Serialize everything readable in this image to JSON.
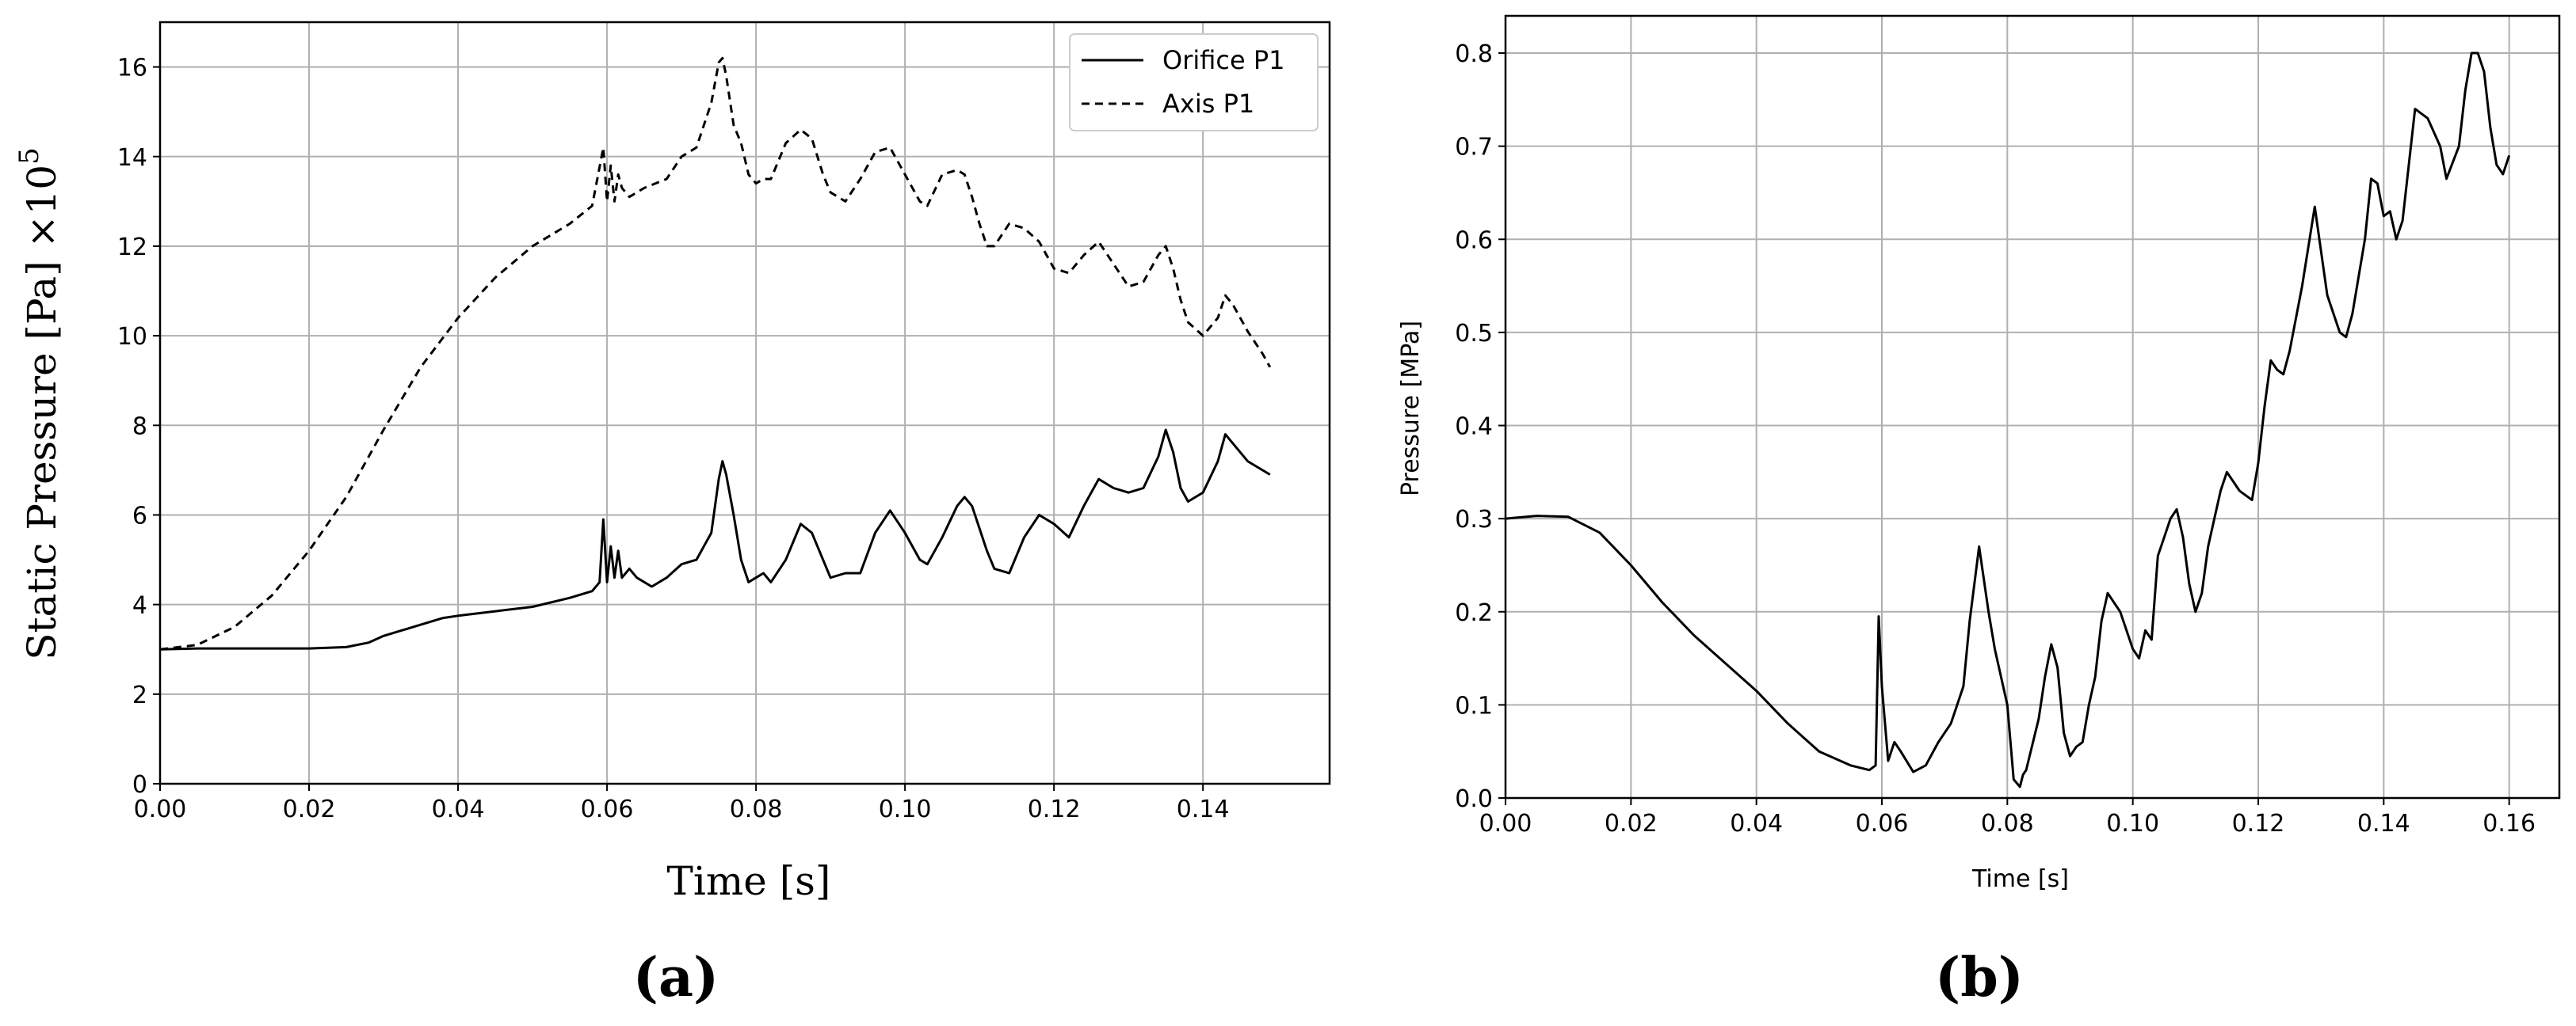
{
  "chart_data": [
    {
      "id": "a",
      "type": "line",
      "caption": "(a)",
      "xlabel": "Time [s]",
      "ylabel": "Static Pressure [Pa] ×10",
      "ylabel_exp": "5",
      "xlim": [
        0,
        0.157
      ],
      "ylim": [
        0,
        17
      ],
      "xticks": [
        "0.00",
        "0.02",
        "0.04",
        "0.06",
        "0.08",
        "0.10",
        "0.12",
        "0.14"
      ],
      "yticks": [
        "0",
        "2",
        "4",
        "6",
        "8",
        "10",
        "12",
        "14",
        "16"
      ],
      "grid": true,
      "legend": {
        "placement": "top-right",
        "entries": [
          "Orifice P1",
          "Axis P1"
        ]
      },
      "series": [
        {
          "name": "Orifice P1",
          "style": "solid",
          "x": [
            0,
            0.005,
            0.01,
            0.015,
            0.02,
            0.025,
            0.028,
            0.03,
            0.032,
            0.035,
            0.038,
            0.04,
            0.045,
            0.05,
            0.055,
            0.058,
            0.059,
            0.0595,
            0.06,
            0.0605,
            0.061,
            0.0615,
            0.062,
            0.063,
            0.064,
            0.066,
            0.068,
            0.07,
            0.072,
            0.074,
            0.075,
            0.0755,
            0.076,
            0.077,
            0.078,
            0.079,
            0.08,
            0.081,
            0.082,
            0.084,
            0.086,
            0.0875,
            0.089,
            0.09,
            0.092,
            0.094,
            0.096,
            0.098,
            0.1,
            0.102,
            0.103,
            0.105,
            0.107,
            0.108,
            0.109,
            0.11,
            0.111,
            0.112,
            0.114,
            0.116,
            0.118,
            0.12,
            0.122,
            0.124,
            0.126,
            0.128,
            0.13,
            0.132,
            0.134,
            0.135,
            0.136,
            0.137,
            0.138,
            0.14,
            0.142,
            0.143,
            0.144,
            0.146,
            0.148,
            0.149
          ],
          "values": [
            3.0,
            3.02,
            3.02,
            3.02,
            3.02,
            3.05,
            3.15,
            3.3,
            3.4,
            3.55,
            3.7,
            3.75,
            3.85,
            3.95,
            4.15,
            4.3,
            4.5,
            5.9,
            4.5,
            5.3,
            4.6,
            5.2,
            4.6,
            4.8,
            4.6,
            4.4,
            4.6,
            4.9,
            5.0,
            5.6,
            6.8,
            7.2,
            6.9,
            6.0,
            5.0,
            4.5,
            4.6,
            4.7,
            4.5,
            5.0,
            5.8,
            5.6,
            5.0,
            4.6,
            4.7,
            4.7,
            5.6,
            6.1,
            5.6,
            5.0,
            4.9,
            5.5,
            6.2,
            6.4,
            6.2,
            5.7,
            5.2,
            4.8,
            4.7,
            5.5,
            6.0,
            5.8,
            5.5,
            6.2,
            6.8,
            6.6,
            6.5,
            6.6,
            7.3,
            7.9,
            7.4,
            6.6,
            6.3,
            6.5,
            7.2,
            7.8,
            7.6,
            7.2,
            7.0,
            6.9
          ]
        },
        {
          "name": "Axis P1",
          "style": "dashed",
          "x": [
            0,
            0.005,
            0.01,
            0.015,
            0.02,
            0.025,
            0.03,
            0.035,
            0.04,
            0.045,
            0.05,
            0.055,
            0.058,
            0.0595,
            0.06,
            0.0605,
            0.061,
            0.0615,
            0.062,
            0.063,
            0.065,
            0.068,
            0.07,
            0.072,
            0.074,
            0.075,
            0.0755,
            0.076,
            0.077,
            0.078,
            0.079,
            0.08,
            0.081,
            0.082,
            0.084,
            0.086,
            0.0875,
            0.089,
            0.09,
            0.092,
            0.094,
            0.096,
            0.098,
            0.1,
            0.102,
            0.103,
            0.105,
            0.107,
            0.108,
            0.109,
            0.11,
            0.111,
            0.112,
            0.114,
            0.116,
            0.118,
            0.12,
            0.122,
            0.124,
            0.126,
            0.128,
            0.13,
            0.132,
            0.134,
            0.135,
            0.136,
            0.137,
            0.138,
            0.14,
            0.142,
            0.143,
            0.144,
            0.146,
            0.148,
            0.149
          ],
          "values": [
            3.0,
            3.1,
            3.5,
            4.2,
            5.2,
            6.4,
            7.9,
            9.3,
            10.4,
            11.3,
            12.0,
            12.5,
            12.9,
            14.2,
            13.0,
            13.8,
            13.0,
            13.6,
            13.3,
            13.1,
            13.3,
            13.5,
            14.0,
            14.2,
            15.2,
            16.1,
            16.2,
            15.8,
            14.7,
            14.3,
            13.6,
            13.4,
            13.5,
            13.5,
            14.3,
            14.6,
            14.4,
            13.6,
            13.2,
            13.0,
            13.5,
            14.1,
            14.2,
            13.6,
            13.0,
            12.9,
            13.6,
            13.7,
            13.6,
            13.1,
            12.5,
            12.0,
            12.0,
            12.5,
            12.4,
            12.1,
            11.5,
            11.4,
            11.8,
            12.1,
            11.6,
            11.1,
            11.2,
            11.8,
            12.0,
            11.5,
            10.8,
            10.3,
            10.0,
            10.4,
            10.9,
            10.7,
            10.1,
            9.6,
            9.3
          ]
        }
      ]
    },
    {
      "id": "b",
      "type": "line",
      "caption": "(b)",
      "xlabel": "Time [s]",
      "ylabel": "Pressure [MPa]",
      "xlim": [
        0,
        0.168
      ],
      "ylim": [
        0,
        0.84
      ],
      "xticks": [
        "0.00",
        "0.02",
        "0.04",
        "0.06",
        "0.08",
        "0.10",
        "0.12",
        "0.14",
        "0.16"
      ],
      "yticks": [
        "0.0",
        "0.1",
        "0.2",
        "0.3",
        "0.4",
        "0.5",
        "0.6",
        "0.7",
        "0.8"
      ],
      "grid": true,
      "series": [
        {
          "name": "Pressure",
          "style": "solid",
          "x": [
            0,
            0.005,
            0.01,
            0.015,
            0.02,
            0.025,
            0.03,
            0.035,
            0.04,
            0.045,
            0.05,
            0.055,
            0.058,
            0.059,
            0.0595,
            0.06,
            0.061,
            0.062,
            0.063,
            0.065,
            0.067,
            0.069,
            0.071,
            0.073,
            0.074,
            0.0755,
            0.077,
            0.078,
            0.079,
            0.08,
            0.081,
            0.082,
            0.0825,
            0.083,
            0.085,
            0.086,
            0.087,
            0.088,
            0.089,
            0.09,
            0.091,
            0.092,
            0.093,
            0.094,
            0.095,
            0.096,
            0.098,
            0.1,
            0.101,
            0.102,
            0.103,
            0.104,
            0.105,
            0.106,
            0.107,
            0.108,
            0.109,
            0.11,
            0.111,
            0.112,
            0.113,
            0.114,
            0.115,
            0.117,
            0.119,
            0.12,
            0.121,
            0.122,
            0.123,
            0.124,
            0.125,
            0.127,
            0.129,
            0.131,
            0.133,
            0.134,
            0.135,
            0.136,
            0.137,
            0.138,
            0.139,
            0.14,
            0.141,
            0.142,
            0.143,
            0.144,
            0.145,
            0.147,
            0.149,
            0.15,
            0.152,
            0.153,
            0.154,
            0.155,
            0.156,
            0.157,
            0.158,
            0.159,
            0.16
          ],
          "values": [
            0.3,
            0.303,
            0.302,
            0.285,
            0.25,
            0.21,
            0.175,
            0.145,
            0.115,
            0.08,
            0.05,
            0.035,
            0.03,
            0.035,
            0.195,
            0.12,
            0.04,
            0.06,
            0.05,
            0.028,
            0.035,
            0.06,
            0.08,
            0.12,
            0.19,
            0.27,
            0.2,
            0.16,
            0.13,
            0.1,
            0.02,
            0.012,
            0.025,
            0.03,
            0.085,
            0.13,
            0.165,
            0.14,
            0.07,
            0.045,
            0.055,
            0.06,
            0.1,
            0.13,
            0.19,
            0.22,
            0.2,
            0.16,
            0.15,
            0.18,
            0.17,
            0.26,
            0.28,
            0.3,
            0.31,
            0.28,
            0.23,
            0.2,
            0.22,
            0.27,
            0.3,
            0.33,
            0.35,
            0.33,
            0.32,
            0.36,
            0.42,
            0.47,
            0.46,
            0.455,
            0.48,
            0.55,
            0.635,
            0.54,
            0.5,
            0.495,
            0.52,
            0.56,
            0.6,
            0.665,
            0.66,
            0.625,
            0.63,
            0.6,
            0.62,
            0.68,
            0.74,
            0.73,
            0.7,
            0.665,
            0.7,
            0.76,
            0.8,
            0.8,
            0.78,
            0.72,
            0.68,
            0.67,
            0.69
          ]
        }
      ]
    }
  ]
}
